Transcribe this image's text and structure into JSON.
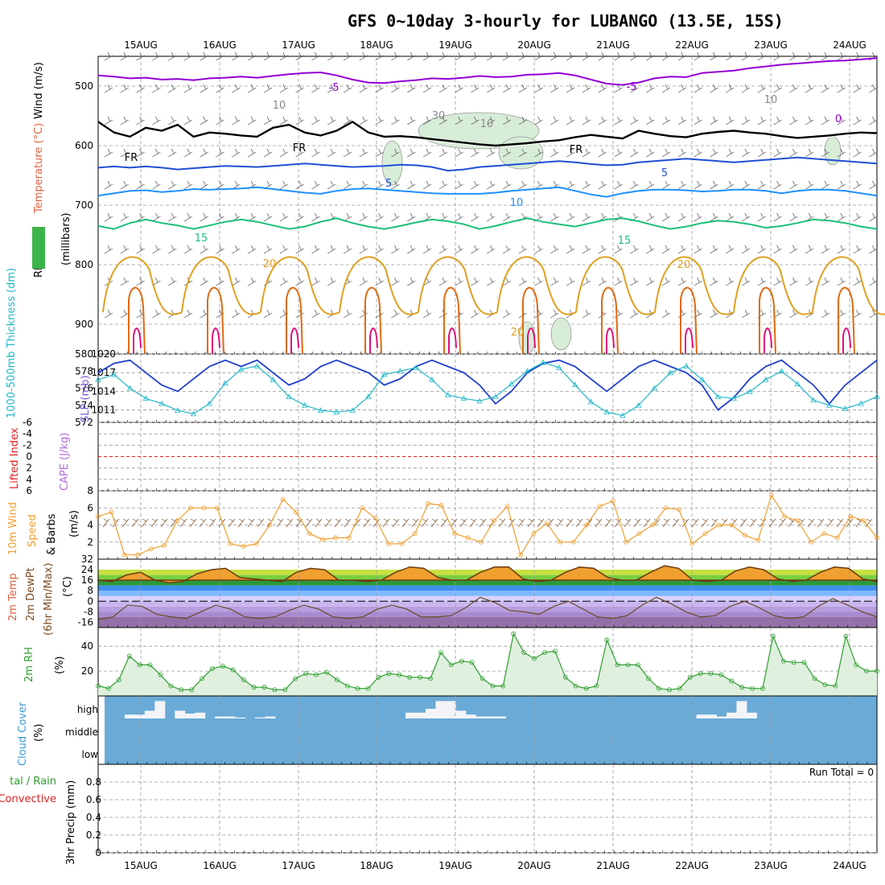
{
  "title": "GFS 0~10day 3-hourly for LUBANGO (13.5E, 15S)",
  "dates": [
    "15AUG",
    "16AUG",
    "17AUG",
    "18AUG",
    "19AUG",
    "20AUG",
    "21AUG",
    "22AUG",
    "23AUG",
    "24AUG"
  ],
  "colors": {
    "purple": "#9400d3",
    "black": "#000000",
    "blue": "#1f4fd6",
    "lightblue": "#1e90ff",
    "green": "#1bbf7a",
    "orange": "#e0a020",
    "darkorange": "#e06a10",
    "magenta": "#e0107a",
    "slp": "#1f3fd0",
    "thick": "#20b8c8",
    "wind10": "#f0a030",
    "rh": "#2e9e2e",
    "cloudbg": "#6aaad6",
    "red": "#e02020"
  },
  "chart_data": [
    {
      "type": "contour",
      "panel": "upper-air",
      "y_axis_left": [
        "RH (%)",
        "Temperature (°C)",
        "Wind (m/s)"
      ],
      "y_axis_right_label": "(millibars)",
      "yticks": [
        500,
        600,
        700,
        800,
        900
      ],
      "ylim": [
        450,
        950
      ],
      "contour_labels": [
        "-5",
        "-5",
        "10",
        "30",
        "10",
        "FR",
        "FR",
        "FR",
        "5",
        "5",
        "10",
        "15",
        "15",
        "20",
        "20",
        "20",
        "10",
        "0"
      ],
      "isotherms": [
        {
          "label": "-5",
          "color": "purple",
          "p": [
            482,
            484,
            487,
            486,
            489,
            488,
            490,
            487,
            486,
            484,
            486,
            483,
            480,
            478,
            477,
            482,
            489,
            494,
            495,
            492,
            490,
            487,
            488,
            486,
            483,
            485,
            484,
            481,
            480,
            478,
            482,
            489,
            496,
            498,
            494,
            487,
            484,
            485,
            478,
            476,
            474,
            470,
            467,
            464,
            462,
            460,
            458,
            457,
            455,
            453
          ]
        },
        {
          "label": "FR",
          "color": "black",
          "p": [
            560,
            578,
            585,
            570,
            575,
            565,
            585,
            578,
            580,
            583,
            585,
            570,
            565,
            578,
            583,
            575,
            560,
            578,
            585,
            584,
            586,
            589,
            592,
            595,
            598,
            600,
            598,
            596,
            593,
            591,
            586,
            582,
            585,
            588,
            575,
            580,
            584,
            586,
            580,
            577,
            575,
            578,
            580,
            584,
            587,
            585,
            583,
            580,
            578,
            579
          ]
        },
        {
          "label": "5",
          "color": "blue",
          "p": [
            637,
            635,
            637,
            635,
            637,
            640,
            638,
            636,
            634,
            635,
            636,
            634,
            632,
            630,
            632,
            634,
            636,
            635,
            634,
            632,
            633,
            636,
            642,
            640,
            636,
            634,
            632,
            630,
            628,
            626,
            628,
            631,
            633,
            632,
            628,
            626,
            624,
            622,
            624,
            626,
            628,
            626,
            624,
            622,
            620,
            622,
            624,
            626,
            628,
            630
          ]
        },
        {
          "label": "10",
          "color": "lightblue",
          "p": [
            684,
            680,
            676,
            675,
            678,
            676,
            673,
            674,
            673,
            672,
            670,
            673,
            676,
            679,
            681,
            676,
            673,
            672,
            674,
            676,
            678,
            680,
            681,
            681,
            681,
            679,
            676,
            674,
            672,
            670,
            676,
            682,
            686,
            680,
            676,
            674,
            674,
            675,
            677,
            676,
            674,
            674,
            676,
            680,
            676,
            674,
            674,
            676,
            680,
            684
          ]
        },
        {
          "label": "15",
          "color": "green",
          "p": [
            735,
            740,
            730,
            724,
            730,
            734,
            740,
            734,
            728,
            724,
            728,
            734,
            740,
            736,
            728,
            722,
            730,
            736,
            740,
            735,
            729,
            724,
            727,
            732,
            740,
            735,
            728,
            722,
            728,
            732,
            736,
            730,
            724,
            722,
            727,
            734,
            740,
            736,
            730,
            726,
            728,
            732,
            738,
            735,
            730,
            724,
            726,
            730,
            736,
            740
          ]
        }
      ]
    },
    {
      "type": "line",
      "panel": "slp-thickness",
      "left_axis_label": "1000-500mb Thickness (dm)",
      "right_axis_label": "SLP (mb)",
      "left_yticks": [
        572,
        574,
        576,
        578,
        580
      ],
      "right_yticks": [
        1011,
        1014,
        1017,
        1020
      ],
      "series": [
        {
          "name": "SLP (mb)",
          "axis": "right",
          "values": [
            1017,
            1018.5,
            1019,
            1017,
            1015,
            1014,
            1016,
            1018,
            1019,
            1018,
            1019,
            1017,
            1015,
            1016,
            1018,
            1019,
            1018,
            1017,
            1015,
            1016,
            1018,
            1019,
            1018,
            1017,
            1015,
            1012,
            1014,
            1017,
            1018.5,
            1019,
            1018,
            1016,
            1014,
            1016,
            1018,
            1019,
            1018,
            1017,
            1015,
            1011,
            1013,
            1016,
            1018,
            1019,
            1017,
            1015,
            1012,
            1015,
            1017,
            1019
          ]
        },
        {
          "name": "1000-500mb Thickness (dm)",
          "axis": "left",
          "values": [
            577,
            577.6,
            576,
            574.8,
            574.2,
            573.4,
            573,
            574.2,
            576.6,
            578.2,
            578.6,
            577,
            575,
            574,
            573.4,
            573.2,
            573.4,
            575,
            577.6,
            578,
            578.4,
            577,
            575.2,
            574.8,
            574.5,
            575,
            576.5,
            578,
            579,
            578.4,
            576.4,
            574.4,
            573.2,
            572.8,
            574,
            576,
            577.8,
            578.6,
            577,
            575,
            574.8,
            575.6,
            577,
            578,
            576.5,
            574.6,
            574,
            573.6,
            574.2,
            575
          ]
        }
      ]
    },
    {
      "type": "line",
      "panel": "lifted-index-cape",
      "left_axis_label": "Lifted Index",
      "right_axis_label": "CAPE (J/kg)",
      "left_yticks": [
        -6,
        -4,
        -2,
        0,
        2,
        4,
        6
      ],
      "reference_line": 0
    },
    {
      "type": "line",
      "panel": "10m-wind",
      "y_axis_label": "10m Wind Speed & Barbs (m/s)",
      "yticks": [
        2,
        4,
        6,
        8
      ],
      "ylim": [
        0,
        8
      ],
      "series": [
        {
          "name": "10m Wind Speed",
          "values": [
            5,
            5.5,
            0.5,
            0.5,
            1.2,
            1.6,
            4.5,
            6,
            6,
            6,
            1.8,
            1.5,
            1.8,
            4,
            7,
            5.5,
            3,
            2.3,
            2.5,
            2.5,
            6,
            4.8,
            1.8,
            1.8,
            3,
            6.5,
            6.3,
            3,
            2.5,
            2,
            4.5,
            6.2,
            0.5,
            3,
            4.2,
            2,
            2,
            4,
            6.2,
            6.8,
            2,
            3,
            4,
            6,
            5.8,
            1.8,
            3,
            4,
            4,
            2.8,
            2.2,
            7.5,
            5,
            4.5,
            2,
            3,
            2.5,
            5,
            4.5,
            2.5
          ]
        }
      ]
    },
    {
      "type": "area",
      "panel": "2m-temp",
      "y_axis_label": "2m Temp / 2m DewPt / (6hr Min/Max) (°C)",
      "yticks": [
        -16,
        -8,
        0,
        8,
        16,
        24,
        32
      ],
      "ylim": [
        -20,
        32
      ],
      "series": [
        {
          "name": "2m Temp",
          "values": [
            16,
            15,
            20,
            22,
            16,
            14,
            15,
            21,
            24,
            25,
            18,
            17,
            16,
            15,
            22,
            25,
            24,
            16,
            16,
            15,
            16,
            22,
            26,
            25,
            18,
            16,
            16,
            22,
            26,
            26,
            17,
            15,
            16,
            22,
            26,
            25,
            18,
            16,
            16,
            22,
            27,
            25,
            16,
            15,
            16,
            23,
            26,
            24,
            17,
            15,
            16,
            22,
            26,
            25,
            17,
            15
          ]
        },
        {
          "name": "2m DewPt",
          "values": [
            -14,
            -12,
            -3,
            -4,
            -10,
            -12,
            -13,
            -8,
            -3,
            -6,
            -12,
            -13,
            -12,
            -7,
            -3,
            -6,
            -12,
            -13,
            -12,
            -6,
            -3,
            -6,
            -12,
            -12,
            -11,
            -5,
            3,
            -1,
            -7,
            -8,
            -10,
            -4,
            0,
            -6,
            -12,
            -13,
            -11,
            -3,
            3,
            -2,
            -8,
            -12,
            -11,
            -4,
            0,
            -5,
            -11,
            -13,
            -12,
            -4,
            2,
            -3,
            -8,
            -12
          ]
        }
      ]
    },
    {
      "type": "area",
      "panel": "2m-rh",
      "y_axis_label": "2m RH (%)",
      "yticks": [
        20,
        40
      ],
      "ylim": [
        0,
        55
      ],
      "series": [
        {
          "name": "2m RH",
          "values": [
            8,
            6,
            13,
            32,
            25,
            25,
            17,
            8,
            5,
            5,
            14,
            22,
            24,
            21,
            13,
            7,
            7,
            5,
            5,
            14,
            18,
            17,
            19,
            13,
            8,
            6,
            6,
            15,
            18,
            17,
            15,
            15,
            14,
            35,
            25,
            28,
            27,
            14,
            8,
            8,
            50,
            35,
            30,
            35,
            36,
            15,
            8,
            6,
            8,
            45,
            25,
            25,
            25,
            14,
            6,
            5,
            6,
            15,
            18,
            18,
            17,
            12,
            7,
            6,
            6,
            48,
            28,
            27,
            27,
            14,
            9,
            8,
            48,
            25,
            20,
            20
          ]
        }
      ]
    },
    {
      "type": "bar",
      "panel": "cloud-cover",
      "y_axis_label": "Cloud Cover (%)",
      "levels": [
        "high",
        "middle",
        "low"
      ],
      "high_cloud": [
        0,
        0,
        0.2,
        0.2,
        0.4,
        0.9,
        0,
        0.4,
        0.25,
        0.3,
        0,
        0.1,
        0.1,
        0.05,
        0,
        0.05,
        0.1,
        0,
        0,
        0,
        0,
        0,
        0,
        0,
        0,
        0,
        0,
        0,
        0,
        0,
        0.3,
        0.3,
        0.5,
        0.9,
        0.9,
        0.4,
        0.2,
        0.1,
        0.1,
        0.1,
        0,
        0,
        0,
        0,
        0,
        0,
        0,
        0,
        0,
        0,
        0,
        0,
        0,
        0,
        0,
        0,
        0,
        0,
        0,
        0.2,
        0.2,
        0.1,
        0.3,
        0.9,
        0.3,
        0,
        0,
        0,
        0,
        0,
        0,
        0,
        0,
        0,
        0,
        0,
        0
      ]
    },
    {
      "type": "bar",
      "panel": "precip",
      "y_axis_label": "3hr Precip (mm)",
      "side_labels": [
        "tal / Rain",
        "Convective"
      ],
      "yticks": [
        0,
        0.2,
        0.4,
        0.6,
        0.8
      ],
      "ylim": [
        0,
        1
      ],
      "annotation": "Run Total = 0",
      "values": []
    }
  ]
}
